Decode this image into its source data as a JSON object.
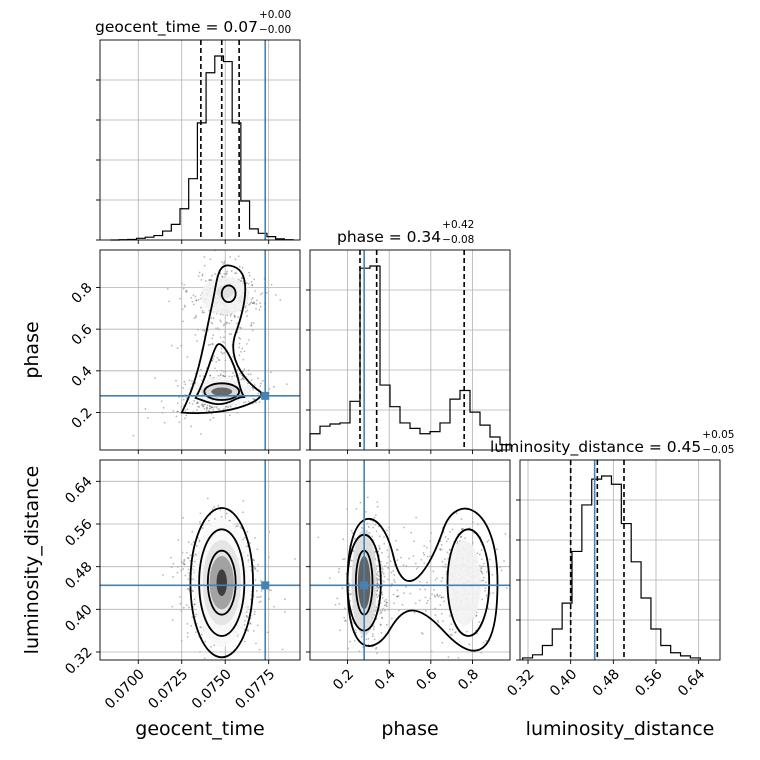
{
  "chart_data": {
    "type": "scatter",
    "variables": [
      "geocent_time",
      "phase",
      "luminosity_distance"
    ],
    "truth": {
      "geocent_time": 0.0773,
      "phase": 0.28,
      "luminosity_distance": 0.445
    },
    "titles": [
      {
        "param": "geocent_time",
        "median": "0.07",
        "plus": "+0.00",
        "minus": "−0.00"
      },
      {
        "param": "phase",
        "median": "0.34",
        "plus": "+0.42",
        "minus": "−0.08"
      },
      {
        "param": "luminosity_distance",
        "median": "0.45",
        "plus": "+0.05",
        "minus": "−0.05"
      }
    ],
    "axes": {
      "geocent_time": {
        "range": [
          0.0678,
          0.0793
        ],
        "ticks": [
          "0.0700",
          "0.0725",
          "0.0750",
          "0.0775"
        ],
        "tick_values": [
          0.07,
          0.0725,
          0.075,
          0.0775
        ]
      },
      "phase": {
        "range": [
          0.02,
          0.98
        ],
        "ticks": [
          "0.2",
          "0.4",
          "0.6",
          "0.8"
        ],
        "tick_values": [
          0.2,
          0.4,
          0.6,
          0.8
        ]
      },
      "luminosity_distance": {
        "range": [
          0.305,
          0.68
        ],
        "ticks": [
          "0.32",
          "0.40",
          "0.48",
          "0.56",
          "0.64"
        ],
        "tick_values": [
          0.32,
          0.4,
          0.48,
          0.56,
          0.64
        ]
      }
    },
    "histograms": {
      "geocent_time": {
        "bin_edges": [
          0.0684,
          0.0689,
          0.0694,
          0.0699,
          0.0704,
          0.0709,
          0.0714,
          0.0719,
          0.0724,
          0.0729,
          0.0734,
          0.0739,
          0.0744,
          0.0749,
          0.0754,
          0.0759,
          0.0764,
          0.0769,
          0.0774,
          0.0779,
          0.0784,
          0.0789
        ],
        "counts": [
          0.0,
          0.2,
          0.5,
          1.5,
          2.5,
          4,
          8,
          14,
          28,
          55,
          105,
          150,
          165,
          160,
          105,
          35,
          10,
          6,
          3,
          1,
          0.3
        ]
      },
      "phase": {
        "bin_edges": [
          0.02,
          0.068,
          0.116,
          0.164,
          0.212,
          0.26,
          0.308,
          0.356,
          0.404,
          0.452,
          0.5,
          0.548,
          0.596,
          0.644,
          0.692,
          0.74,
          0.788,
          0.836,
          0.884,
          0.932,
          0.98
        ],
        "counts": [
          15,
          22,
          24,
          25,
          45,
          168,
          170,
          60,
          40,
          25,
          20,
          15,
          17,
          25,
          47,
          55,
          35,
          23,
          12,
          5
        ]
      },
      "luminosity_distance": {
        "bin_edges": [
          0.31,
          0.3285,
          0.347,
          0.3655,
          0.384,
          0.4025,
          0.421,
          0.4395,
          0.458,
          0.4765,
          0.495,
          0.5135,
          0.532,
          0.5505,
          0.569,
          0.5875,
          0.606,
          0.6245,
          0.643
        ],
        "counts": [
          2,
          5,
          14,
          30,
          55,
          105,
          150,
          175,
          178,
          170,
          132,
          95,
          60,
          30,
          14,
          7,
          4,
          2
        ]
      }
    },
    "quantiles": {
      "geocent_time": [
        0.0736,
        0.0748,
        0.0758
      ],
      "phase": [
        0.26,
        0.34,
        0.76
      ],
      "luminosity_distance": [
        0.4,
        0.45,
        0.5
      ]
    },
    "grid": true
  }
}
